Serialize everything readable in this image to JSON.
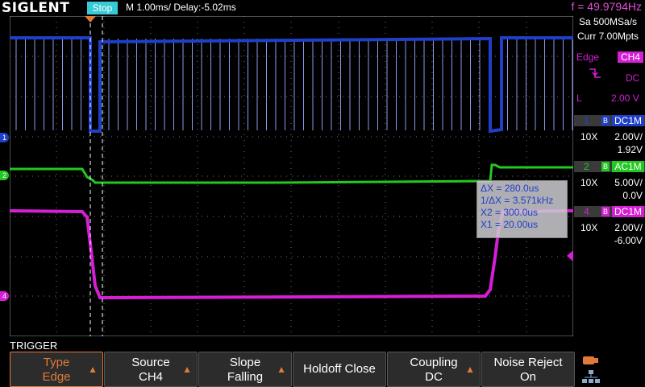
{
  "brand": "SIGLENT",
  "run_state": "Stop",
  "timebase": "M 1.00ms/ Delay:-5.02ms",
  "frequency": "f = 49.9794Hz",
  "acquisition": {
    "sample_rate": "Sa 500MSa/s",
    "memory": "Curr 7.00Mpts"
  },
  "trigger_info": {
    "type": "Edge",
    "source": "CH4",
    "slope_icon": "falling-edge-icon",
    "coupling": "DC",
    "level_label": "L",
    "level": "2.00 V"
  },
  "channels": [
    {
      "num": "1",
      "b": "B",
      "coupling": "DC1M",
      "probe": "10X",
      "scale": "2.00V/",
      "offset": "1.92V",
      "color": "#1e3fc8"
    },
    {
      "num": "2",
      "b": "B",
      "coupling": "AC1M",
      "probe": "10X",
      "scale": "5.00V/",
      "offset": "0.0V",
      "color": "#22c822"
    },
    {
      "num": "4",
      "b": "B",
      "coupling": "DC1M",
      "probe": "10X",
      "scale": "2.00V/",
      "offset": "-6.00V",
      "color": "#d41fd4"
    }
  ],
  "ground_markers": [
    "1",
    "2",
    "4"
  ],
  "cursor_box": {
    "dx": "ΔX = 280.0us",
    "inv_dx": "1/ΔX = 3.571kHz",
    "x2": "X2 = 300.0us",
    "x1": "X1 = 20.00us"
  },
  "menu_title": "TRIGGER",
  "softkeys": [
    {
      "top": "Type",
      "bottom": "Edge",
      "selected": true,
      "arrow": true
    },
    {
      "top": "Source",
      "bottom": "CH4",
      "selected": false,
      "arrow": true
    },
    {
      "top": "Slope",
      "bottom": "Falling",
      "selected": false,
      "arrow": true
    },
    {
      "top": "Holdoff Close",
      "bottom": "",
      "selected": false,
      "arrow": false
    },
    {
      "top": "Coupling",
      "bottom": "DC",
      "selected": false,
      "arrow": true
    },
    {
      "top": "Noise Reject",
      "bottom": "On",
      "selected": false,
      "arrow": true
    }
  ],
  "colors": {
    "accent": "#e07a3a",
    "stop_badge": "#36c9d6",
    "frequency": "#e04fd0",
    "grid": "#9a9a9a"
  }
}
